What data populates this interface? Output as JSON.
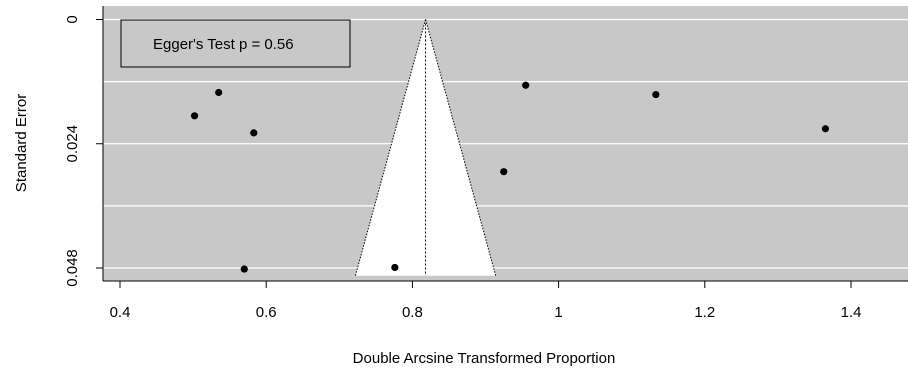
{
  "chart_data": {
    "type": "scatter",
    "title": "",
    "xlabel": "Double Arcsine Transformed Proportion",
    "ylabel": "Standard Error",
    "xlim": [
      0.375,
      1.48
    ],
    "ylim": [
      0.0495,
      0.0
    ],
    "y_reversed": true,
    "x_ticks": [
      0.4,
      0.6,
      0.8,
      1.0,
      1.2,
      1.4
    ],
    "x_tick_labels": [
      "0.4",
      "0.6",
      "0.8",
      "1",
      "1.2",
      "1.4"
    ],
    "y_ticks": [
      0,
      0.024,
      0.048
    ],
    "y_tick_labels": [
      "0",
      "0.024",
      "0.048"
    ],
    "y_gridlines": [
      0,
      0.012,
      0.024,
      0.036,
      0.048
    ],
    "pooled_estimate": 0.818,
    "funnel_bounds": {
      "apex_se": 0.0,
      "base_se": 0.0495,
      "left_x": 0.722,
      "right_x": 0.914
    },
    "points": [
      {
        "x": 0.502,
        "y": 0.0186
      },
      {
        "x": 0.535,
        "y": 0.0141
      },
      {
        "x": 0.583,
        "y": 0.0219
      },
      {
        "x": 0.57,
        "y": 0.0482
      },
      {
        "x": 0.776,
        "y": 0.0479
      },
      {
        "x": 0.925,
        "y": 0.0294
      },
      {
        "x": 0.955,
        "y": 0.0127
      },
      {
        "x": 1.133,
        "y": 0.0145
      },
      {
        "x": 1.365,
        "y": 0.0211
      }
    ],
    "legend": {
      "text": "Egger's Test p = 0.56",
      "position": "top-left"
    },
    "colors": {
      "panel": "#c8c8c8",
      "grid": "#ffffff",
      "funnel": "#ffffff",
      "point": "#000000"
    },
    "grid": true
  }
}
